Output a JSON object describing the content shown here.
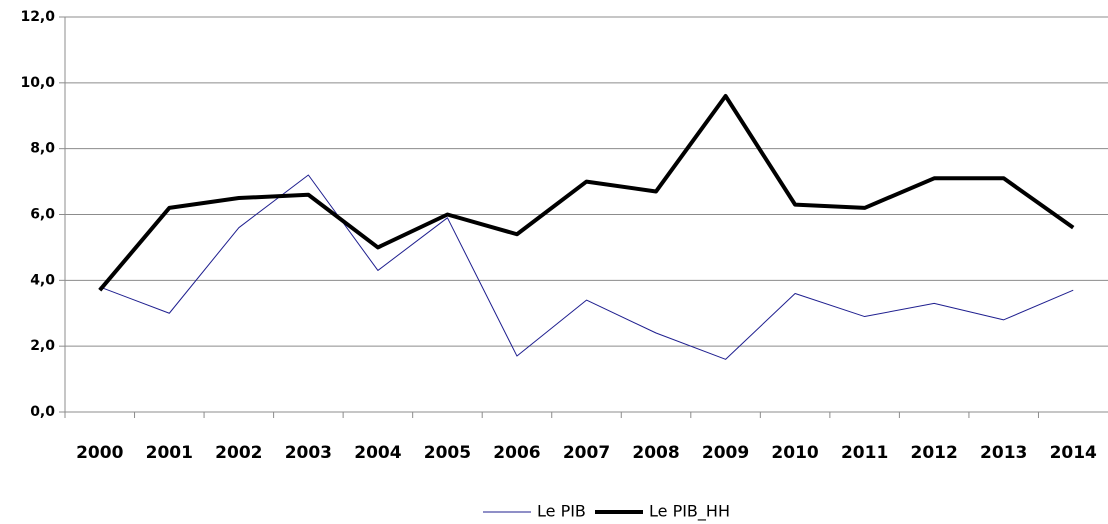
{
  "chart_data": {
    "type": "line",
    "categories": [
      "2000",
      "2001",
      "2002",
      "2003",
      "2004",
      "2005",
      "2006",
      "2007",
      "2008",
      "2009",
      "2010",
      "2011",
      "2012",
      "2013",
      "2014"
    ],
    "series": [
      {
        "name": "Le PIB",
        "color": "#1f1f8f",
        "width": 1,
        "values": [
          3.8,
          3.0,
          5.6,
          7.2,
          4.3,
          5.9,
          1.7,
          3.4,
          2.4,
          1.6,
          3.6,
          2.9,
          3.3,
          2.8,
          3.7
        ]
      },
      {
        "name": "Le PIB_HH",
        "color": "#000000",
        "width": 4,
        "values": [
          3.7,
          6.2,
          6.5,
          6.6,
          5.0,
          6.0,
          5.4,
          7.0,
          6.7,
          9.6,
          6.3,
          6.2,
          7.1,
          7.1,
          5.6
        ]
      }
    ],
    "ylim": [
      0,
      12
    ],
    "yticks": [
      {
        "value": 0,
        "label": "0,0"
      },
      {
        "value": 2,
        "label": "2,0"
      },
      {
        "value": 4,
        "label": "4,0"
      },
      {
        "value": 6,
        "label": "6,0"
      },
      {
        "value": 8,
        "label": "8,0"
      },
      {
        "value": 10,
        "label": "10,0"
      },
      {
        "value": 12,
        "label": "12,0"
      }
    ],
    "grid": true,
    "legend": "bottom"
  }
}
